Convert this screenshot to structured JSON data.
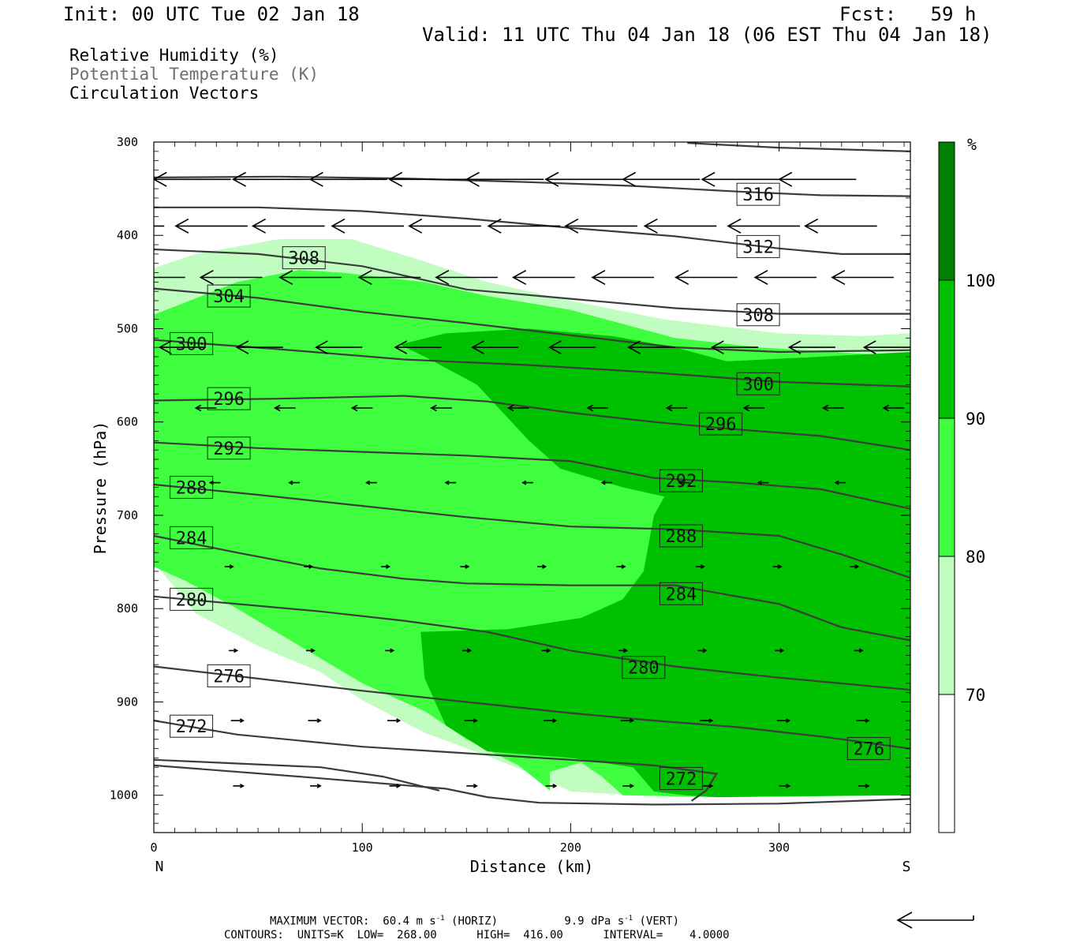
{
  "header": {
    "init": "Init: 00 UTC Tue 02 Jan 18",
    "fcst": "Fcst:   59 h",
    "valid": "Valid: 11 UTC Thu 04 Jan 18 (06 EST Thu 04 Jan 18)",
    "fields": [
      "Relative Humidity (%)",
      "Potential Temperature (K)",
      "Circulation Vectors"
    ]
  },
  "footer": {
    "max_vector_label": "MAXIMUM VECTOR:",
    "max_horiz": "60.4 m s",
    "horiz_tag": "(HORIZ)",
    "max_vert": "9.9 dPa s",
    "vert_tag": "(VERT)",
    "unit_exp": "-1",
    "contours": "CONTOURS:  UNITS=K  LOW=  268.00      HIGH=  416.00      INTERVAL=    4.0000"
  },
  "colors": {
    "rh70": "#c1fdc1",
    "rh80": "#3ffe3f",
    "rh90": "#00c100",
    "rh100": "#007f00",
    "contour": "#3c3c3c"
  },
  "chart_data": {
    "type": "cross-section",
    "xlabel": "Distance (km)",
    "ylabel": "Pressure (hPa)",
    "xlim": [
      0,
      363
    ],
    "ylim": [
      1040,
      300
    ],
    "x_ticks": [
      0,
      100,
      200,
      300
    ],
    "x_end_labels": {
      "left": "N",
      "right": "S"
    },
    "y_ticks": [
      300,
      400,
      500,
      600,
      700,
      800,
      900,
      1000
    ],
    "colorbar": {
      "unit": "%",
      "levels": [
        70,
        80,
        90,
        100
      ],
      "colors": [
        "#ffffff",
        "#c1fdc1",
        "#3ffe3f",
        "#00c100",
        "#007f00"
      ]
    },
    "rh_regions": [
      {
        "level": 70,
        "polygon": [
          [
            0,
            435
          ],
          [
            20,
            420
          ],
          [
            60,
            404
          ],
          [
            95,
            404
          ],
          [
            130,
            428
          ],
          [
            160,
            450
          ],
          [
            200,
            470
          ],
          [
            245,
            490
          ],
          [
            300,
            505
          ],
          [
            340,
            508
          ],
          [
            363,
            505
          ],
          [
            363,
            1000
          ],
          [
            310,
            1000
          ],
          [
            270,
            1002
          ],
          [
            230,
            1000
          ],
          [
            215,
            998
          ],
          [
            200,
            996
          ],
          [
            185,
            980
          ],
          [
            160,
            958
          ],
          [
            130,
            933
          ],
          [
            100,
            898
          ],
          [
            80,
            868
          ],
          [
            50,
            840
          ],
          [
            20,
            805
          ],
          [
            0,
            750
          ]
        ]
      },
      {
        "level": 80,
        "polygon": [
          [
            0,
            485
          ],
          [
            40,
            450
          ],
          [
            70,
            437
          ],
          [
            90,
            440
          ],
          [
            130,
            450
          ],
          [
            160,
            465
          ],
          [
            200,
            480
          ],
          [
            250,
            510
          ],
          [
            290,
            520
          ],
          [
            363,
            530
          ],
          [
            363,
            1000
          ],
          [
            270,
            1002
          ],
          [
            225,
            1000
          ],
          [
            215,
            980
          ],
          [
            205,
            965
          ],
          [
            190,
            975
          ],
          [
            190,
            995
          ],
          [
            175,
            968
          ],
          [
            150,
            940
          ],
          [
            130,
            910
          ],
          [
            100,
            880
          ],
          [
            70,
            840
          ],
          [
            40,
            800
          ],
          [
            15,
            770
          ],
          [
            0,
            755
          ]
        ]
      },
      {
        "level": 90,
        "polygon": [
          [
            118,
            517
          ],
          [
            140,
            505
          ],
          [
            180,
            500
          ],
          [
            220,
            508
          ],
          [
            250,
            520
          ],
          [
            275,
            535
          ],
          [
            320,
            530
          ],
          [
            363,
            525
          ],
          [
            363,
            1000
          ],
          [
            270,
            1002
          ],
          [
            255,
            1000
          ],
          [
            240,
            996
          ],
          [
            230,
            970
          ],
          [
            200,
            960
          ],
          [
            160,
            953
          ],
          [
            140,
            925
          ],
          [
            130,
            875
          ],
          [
            128,
            825
          ],
          [
            170,
            822
          ],
          [
            205,
            810
          ],
          [
            215,
            800
          ],
          [
            225,
            790
          ],
          [
            235,
            760
          ],
          [
            240,
            700
          ],
          [
            245,
            680
          ],
          [
            225,
            670
          ],
          [
            195,
            650
          ],
          [
            180,
            620
          ],
          [
            155,
            560
          ],
          [
            130,
            530
          ]
        ]
      }
    ],
    "theta_lines": [
      {
        "theta": 272,
        "points": [
          [
            0,
            962
          ],
          [
            20,
            964
          ],
          [
            80,
            970
          ],
          [
            110,
            980
          ],
          [
            137,
            995
          ]
        ]
      },
      {
        "theta": 272,
        "points": [
          [
            0,
            968
          ],
          [
            70,
            980
          ],
          [
            140,
            993
          ],
          [
            160,
            1002
          ],
          [
            185,
            1008
          ],
          [
            240,
            1010
          ],
          [
            300,
            1009
          ],
          [
            363,
            1004
          ]
        ]
      },
      {
        "theta": 272,
        "points": [
          [
            0,
            920
          ],
          [
            40,
            935
          ],
          [
            100,
            948
          ],
          [
            150,
            955
          ],
          [
            200,
            962
          ],
          [
            240,
            968
          ],
          [
            270,
            977
          ],
          [
            265,
            995
          ],
          [
            258,
            1006
          ]
        ],
        "label_at": [
          253,
          975
        ]
      },
      {
        "theta": 276,
        "points": [
          [
            0,
            862
          ],
          [
            50,
            875
          ],
          [
            100,
            888
          ],
          [
            150,
            900
          ],
          [
            200,
            912
          ],
          [
            240,
            920
          ],
          [
            280,
            927
          ],
          [
            320,
            937
          ],
          [
            363,
            950
          ]
        ],
        "label_at": [
          343,
          945
        ]
      },
      {
        "theta": 280,
        "points": [
          [
            0,
            787
          ],
          [
            40,
            795
          ],
          [
            80,
            803
          ],
          [
            120,
            813
          ],
          [
            160,
            825
          ],
          [
            200,
            845
          ],
          [
            250,
            862
          ],
          [
            300,
            874
          ],
          [
            363,
            887
          ]
        ],
        "label_at": [
          235,
          848
        ]
      },
      {
        "theta": 284,
        "points": [
          [
            0,
            722
          ],
          [
            40,
            740
          ],
          [
            80,
            757
          ],
          [
            120,
            768
          ],
          [
            150,
            773
          ],
          [
            200,
            775
          ],
          [
            250,
            775
          ],
          [
            300,
            795
          ],
          [
            330,
            820
          ],
          [
            363,
            834
          ]
        ],
        "label_at": [
          253,
          752
        ]
      },
      {
        "theta": 288,
        "points": [
          [
            0,
            667
          ],
          [
            50,
            678
          ],
          [
            100,
            690
          ],
          [
            150,
            702
          ],
          [
            200,
            712
          ],
          [
            250,
            715
          ],
          [
            300,
            722
          ],
          [
            330,
            742
          ],
          [
            363,
            767
          ]
        ],
        "label_at": [
          253,
          678
        ]
      },
      {
        "theta": 292,
        "points": [
          [
            0,
            622
          ],
          [
            50,
            628
          ],
          [
            100,
            632
          ],
          [
            150,
            636
          ],
          [
            200,
            642
          ],
          [
            240,
            660
          ],
          [
            280,
            665
          ],
          [
            320,
            672
          ],
          [
            363,
            693
          ]
        ],
        "label_at": [
          253,
          605
        ]
      },
      {
        "theta": 296,
        "points": [
          [
            0,
            577
          ],
          [
            60,
            575
          ],
          [
            120,
            572
          ],
          [
            160,
            578
          ],
          [
            200,
            590
          ],
          [
            240,
            600
          ],
          [
            280,
            608
          ],
          [
            320,
            615
          ],
          [
            363,
            630
          ]
        ],
        "label_at": [
          272,
          538
        ]
      },
      {
        "theta": 300,
        "points": [
          [
            0,
            512
          ],
          [
            60,
            522
          ],
          [
            120,
            533
          ],
          [
            180,
            539
          ],
          [
            240,
            547
          ],
          [
            300,
            557
          ],
          [
            363,
            562
          ]
        ],
        "label_at": [
          290,
          486
        ]
      },
      {
        "theta": 304,
        "points": [
          [
            0,
            457
          ],
          [
            50,
            467
          ],
          [
            100,
            482
          ],
          [
            150,
            494
          ],
          [
            200,
            507
          ],
          [
            250,
            520
          ],
          [
            300,
            525
          ],
          [
            363,
            523
          ]
        ],
        "label_at": [
          36,
          374
        ]
      },
      {
        "theta": 308,
        "points": [
          [
            0,
            415
          ],
          [
            50,
            420
          ],
          [
            100,
            433
          ],
          [
            150,
            458
          ],
          [
            200,
            468
          ],
          [
            250,
            478
          ],
          [
            300,
            484
          ],
          [
            363,
            484
          ]
        ],
        "label_at": [
          72,
          325
        ]
      },
      {
        "theta": 312,
        "points": [
          [
            0,
            370
          ],
          [
            50,
            370
          ],
          [
            100,
            374
          ],
          [
            150,
            382
          ],
          [
            200,
            392
          ],
          [
            250,
            401
          ],
          [
            300,
            414
          ],
          [
            330,
            420
          ],
          [
            363,
            420
          ]
        ],
        "label_at": [
          290,
          312
        ]
      },
      {
        "theta": 316,
        "points": [
          [
            0,
            338
          ],
          [
            60,
            337
          ],
          [
            120,
            339
          ],
          [
            180,
            343
          ],
          [
            230,
            347
          ],
          [
            280,
            353
          ],
          [
            320,
            357
          ],
          [
            363,
            358
          ]
        ],
        "label_at": [
          290,
          246
        ]
      },
      {
        "theta": 320,
        "points": [
          [
            256,
            301
          ],
          [
            300,
            306
          ],
          [
            363,
            310
          ]
        ]
      }
    ],
    "contour_labels": [
      {
        "text": "316",
        "x": 290,
        "p": 356
      },
      {
        "text": "312",
        "x": 290,
        "p": 412
      },
      {
        "text": "308",
        "x": 72,
        "p": 424
      },
      {
        "text": "308",
        "x": 290,
        "p": 485
      },
      {
        "text": "304",
        "x": 36,
        "p": 465
      },
      {
        "text": "300",
        "x": 18,
        "p": 516
      },
      {
        "text": "300",
        "x": 290,
        "p": 559
      },
      {
        "text": "296",
        "x": 36,
        "p": 575
      },
      {
        "text": "296",
        "x": 272,
        "p": 602
      },
      {
        "text": "292",
        "x": 36,
        "p": 628
      },
      {
        "text": "292",
        "x": 253,
        "p": 663
      },
      {
        "text": "288",
        "x": 18,
        "p": 670
      },
      {
        "text": "288",
        "x": 253,
        "p": 722
      },
      {
        "text": "284",
        "x": 18,
        "p": 724
      },
      {
        "text": "284",
        "x": 253,
        "p": 784
      },
      {
        "text": "280",
        "x": 18,
        "p": 790
      },
      {
        "text": "280",
        "x": 235,
        "p": 863
      },
      {
        "text": "276",
        "x": 36,
        "p": 872
      },
      {
        "text": "276",
        "x": 343,
        "p": 950
      },
      {
        "text": "272",
        "x": 18,
        "p": 926
      },
      {
        "text": "272",
        "x": 253,
        "p": 982
      }
    ],
    "vector_rows": [
      {
        "p": 340,
        "u": -7.5,
        "xs": [
          0,
          37,
          75,
          112,
          150,
          187,
          225,
          262,
          300,
          337
        ]
      },
      {
        "p": 390,
        "u": -7.0,
        "xs": [
          5,
          45,
          82,
          120,
          157,
          195,
          232,
          270,
          310,
          347
        ]
      },
      {
        "p": 445,
        "u": -6.0,
        "xs": [
          15,
          52,
          90,
          128,
          165,
          202,
          240,
          280,
          318,
          355
        ]
      },
      {
        "p": 520,
        "u": -4.5,
        "xs": [
          25,
          62,
          100,
          138,
          175,
          212,
          250,
          290,
          327,
          363
        ]
      },
      {
        "p": 585,
        "u": -2.0,
        "xs": [
          30,
          68,
          105,
          143,
          180,
          218,
          256,
          293,
          331,
          360
        ]
      },
      {
        "p": 665,
        "u": -1.0,
        "xs": [
          32,
          70,
          107,
          145,
          182,
          220,
          257,
          295,
          332
        ]
      },
      {
        "p": 755,
        "u": 0.8,
        "xs": [
          34,
          72,
          109,
          147,
          184,
          222,
          260,
          297,
          334
        ]
      },
      {
        "p": 845,
        "u": 0.8,
        "xs": [
          36,
          73,
          111,
          148,
          186,
          223,
          261,
          298,
          336
        ]
      },
      {
        "p": 920,
        "u": 1.2,
        "xs": [
          37,
          74,
          112,
          149,
          187,
          224,
          262,
          299,
          337
        ]
      },
      {
        "p": 990,
        "u": 1.0,
        "xs": [
          38,
          75,
          113,
          150,
          188,
          225,
          263,
          300,
          338
        ]
      }
    ]
  }
}
